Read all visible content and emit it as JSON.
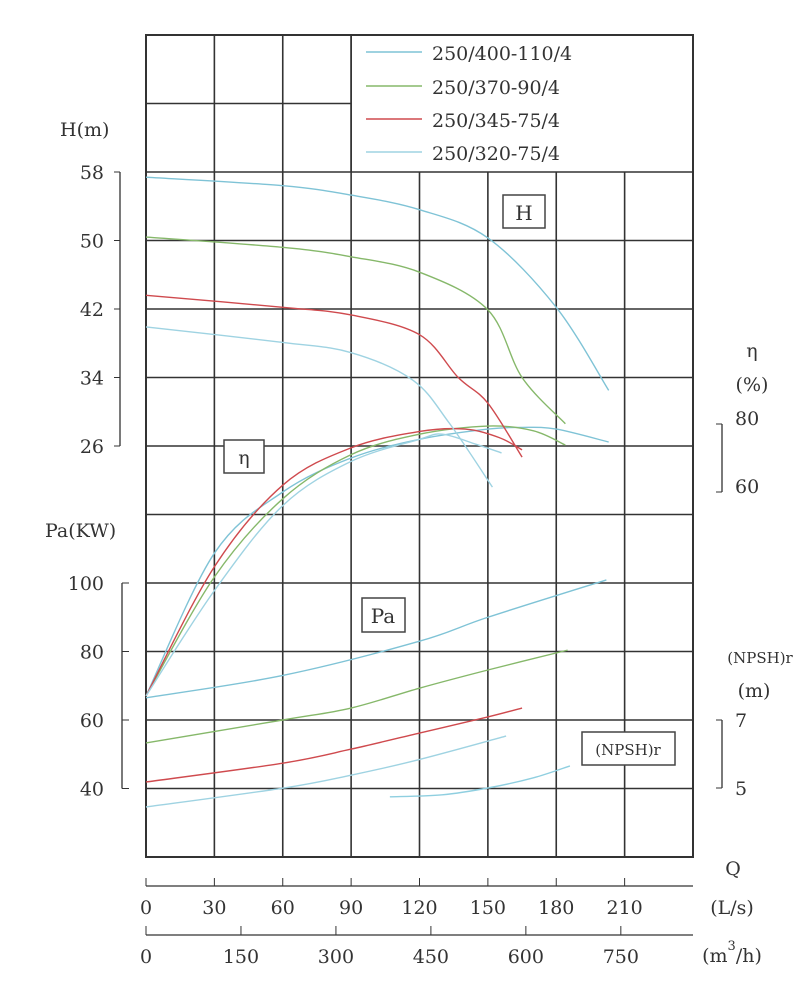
{
  "chart_data": {
    "type": "line",
    "legend_position": "top-right",
    "grid": true,
    "legend": [
      "250/400-110/4",
      "250/370-90/4",
      "250/345-75/4",
      "250/320-75/4"
    ],
    "colors": [
      "#7fc3d6",
      "#86b86a",
      "#cf4a4e",
      "#9fd3e2"
    ],
    "x_axes": {
      "q_ls": {
        "label": "Q",
        "unit": "(L/s)",
        "ticks": [
          "0",
          "30",
          "60",
          "90",
          "120",
          "150",
          "180",
          "210"
        ],
        "range": [
          0,
          240
        ]
      },
      "q_m3h": {
        "unit_prefix": "(m",
        "unit_sup": "3",
        "unit_suffix": "/h)",
        "ticks": [
          "0",
          "150",
          "300",
          "450",
          "600",
          "750"
        ]
      }
    },
    "y_axes": {
      "H": {
        "label": "H(m)",
        "ticks": [
          "58",
          "50",
          "42",
          "34",
          "26"
        ],
        "range": [
          26,
          58
        ],
        "box_label": "H"
      },
      "eta": {
        "label": "η",
        "unit": "(%)",
        "ticks": [
          "80",
          "60"
        ],
        "box_label": "η"
      },
      "Pa": {
        "label": "Pa(KW)",
        "ticks": [
          "100",
          "80",
          "60",
          "40"
        ],
        "range": [
          40,
          100
        ],
        "box_label": "Pa"
      },
      "NPSHr": {
        "label": "(NPSH)r",
        "unit": "(m)",
        "ticks": [
          "7",
          "5"
        ],
        "box_label": "(NPSH)r"
      }
    },
    "series": [
      {
        "name": "250/400-110/4",
        "H": {
          "x": [
            0,
            60,
            90,
            120,
            150,
            180,
            203
          ],
          "y": [
            57.4,
            56.4,
            55.3,
            53.6,
            50.3,
            42.2,
            32.5
          ]
        },
        "eta": {
          "x": [
            0,
            30,
            60,
            90,
            120,
            150,
            165,
            180,
            203
          ],
          "y": [
            0,
            42,
            60,
            70,
            75.5,
            78.5,
            79,
            78.5,
            74.7
          ]
        },
        "Pa": {
          "x": [
            0,
            60,
            120,
            150,
            202
          ],
          "y": [
            66.5,
            73,
            83,
            90,
            100.9
          ]
        }
      },
      {
        "name": "250/370-90/4",
        "H": {
          "x": [
            0,
            60,
            90,
            120,
            150,
            165,
            184
          ],
          "y": [
            50.4,
            49.2,
            48.1,
            46.3,
            41.9,
            34,
            28.6
          ]
        },
        "eta": {
          "x": [
            0,
            30,
            60,
            90,
            120,
            150,
            170,
            184
          ],
          "y": [
            0,
            35,
            58,
            71,
            77,
            79.4,
            78,
            73.8
          ]
        },
        "Pa": {
          "x": [
            0,
            60,
            90,
            120,
            150,
            185
          ],
          "y": [
            53.3,
            60,
            63.5,
            69.3,
            74.6,
            80.4
          ]
        }
      },
      {
        "name": "250/345-75/4",
        "H": {
          "x": [
            0,
            60,
            90,
            120,
            137,
            150,
            165
          ],
          "y": [
            43.6,
            42.2,
            41.3,
            39,
            34,
            31,
            24.7
          ]
        },
        "eta": {
          "x": [
            0,
            30,
            60,
            90,
            120,
            140,
            155,
            165
          ],
          "y": [
            0,
            38,
            62,
            73,
            77.8,
            78.5,
            76,
            72.4
          ]
        },
        "Pa": {
          "x": [
            0,
            60,
            90,
            120,
            150,
            165
          ],
          "y": [
            41.9,
            47.4,
            51.5,
            56.2,
            60.9,
            63.5
          ]
        }
      },
      {
        "name": "250/320-75/4",
        "H": {
          "x": [
            0,
            60,
            90,
            117,
            133,
            152
          ],
          "y": [
            39.9,
            38.1,
            36.9,
            33.7,
            28.7,
            21.2
          ]
        },
        "eta": {
          "x": [
            0,
            30,
            60,
            90,
            120,
            130,
            145,
            156
          ],
          "y": [
            0,
            31,
            56,
            69,
            75.5,
            77,
            74,
            71.5
          ]
        },
        "Pa": {
          "x": [
            0,
            60,
            90,
            119,
            158
          ],
          "y": [
            34.6,
            40.1,
            43.9,
            48.3,
            55.3
          ]
        }
      }
    ],
    "npshr": {
      "x": [
        107,
        130,
        150,
        170,
        186
      ],
      "y": [
        4.74,
        4.8,
        5.0,
        5.3,
        5.65
      ],
      "color": "#8fcfe0"
    }
  }
}
